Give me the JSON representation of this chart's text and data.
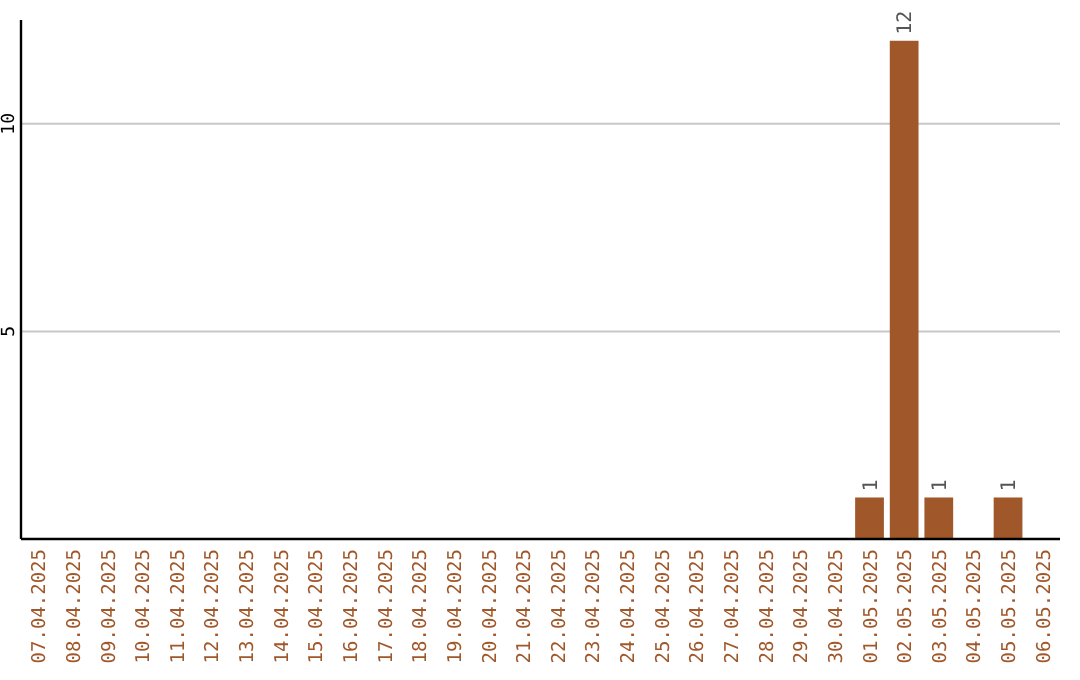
{
  "chart_data": {
    "type": "bar",
    "categories": [
      "07.04.2025",
      "08.04.2025",
      "09.04.2025",
      "10.04.2025",
      "11.04.2025",
      "12.04.2025",
      "13.04.2025",
      "14.04.2025",
      "15.04.2025",
      "16.04.2025",
      "17.04.2025",
      "18.04.2025",
      "19.04.2025",
      "20.04.2025",
      "21.04.2025",
      "22.04.2025",
      "23.04.2025",
      "24.04.2025",
      "25.04.2025",
      "26.04.2025",
      "27.04.2025",
      "28.04.2025",
      "29.04.2025",
      "30.04.2025",
      "01.05.2025",
      "02.05.2025",
      "03.05.2025",
      "04.05.2025",
      "05.05.2025",
      "06.05.2025"
    ],
    "values": [
      0,
      0,
      0,
      0,
      0,
      0,
      0,
      0,
      0,
      0,
      0,
      0,
      0,
      0,
      0,
      0,
      0,
      0,
      0,
      0,
      0,
      0,
      0,
      0,
      1,
      12,
      1,
      0,
      1,
      0
    ],
    "value_labels": [
      null,
      null,
      null,
      null,
      null,
      null,
      null,
      null,
      null,
      null,
      null,
      null,
      null,
      null,
      null,
      null,
      null,
      null,
      null,
      null,
      null,
      null,
      null,
      null,
      "1",
      "12",
      "1",
      null,
      "1",
      null
    ],
    "color": "#a0572a",
    "ylim": [
      0,
      12.5
    ],
    "yticks": [
      5,
      10
    ],
    "grid": "y"
  }
}
